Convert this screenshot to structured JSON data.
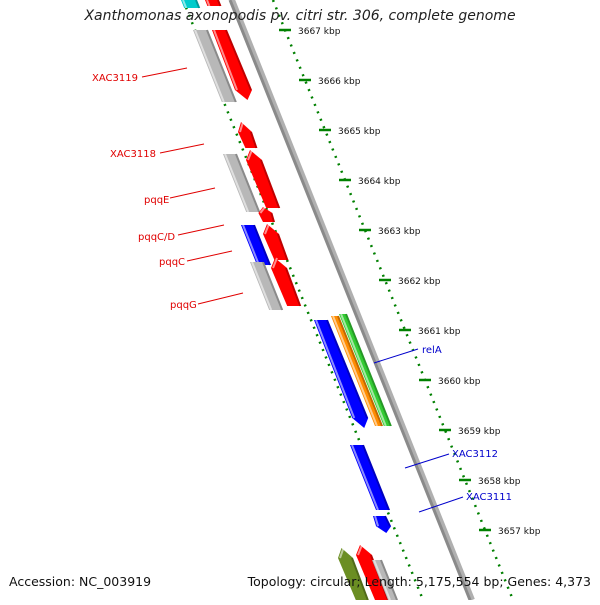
{
  "title": "Xanthomonas axonopodis pv. citri str. 306, complete genome",
  "footer": {
    "accession": "Accession: NC_003919",
    "summary": "Topology: circular; Length: 5,175,554 bp; Genes: 4,373"
  },
  "ticks": [
    {
      "label": "3667 kbp"
    },
    {
      "label": "3666 kbp"
    },
    {
      "label": "3665 kbp"
    },
    {
      "label": "3664 kbp"
    },
    {
      "label": "3663 kbp"
    },
    {
      "label": "3662 kbp"
    },
    {
      "label": "3661 kbp"
    },
    {
      "label": "3660 kbp"
    },
    {
      "label": "3659 kbp"
    },
    {
      "label": "3658 kbp"
    },
    {
      "label": "3657 kbp"
    }
  ],
  "gene_labels": [
    {
      "label": "XAC3119",
      "color": "#e00000"
    },
    {
      "label": "XAC3118",
      "color": "#e00000"
    },
    {
      "label": "pqqE",
      "color": "#e00000"
    },
    {
      "label": "pqqC/D",
      "color": "#e00000"
    },
    {
      "label": "pqqC",
      "color": "#e00000"
    },
    {
      "label": "pqqG",
      "color": "#e00000"
    },
    {
      "label": "relA",
      "color": "#0000cc"
    },
    {
      "label": "XAC3112",
      "color": "#0000cc"
    },
    {
      "label": "XAC3111",
      "color": "#0000cc"
    }
  ],
  "colors": {
    "forward_cds": "#ff0000",
    "reverse_cds": "#0000ff",
    "orange_feature": "#ff8c00",
    "green_feature": "#33cc33",
    "olive_feature": "#6b8e23",
    "gray_feature": "#b8b8b8",
    "cyan_feature": "#00cccc",
    "backbone": "#8a8a8a",
    "tick_dots": "#008000"
  }
}
